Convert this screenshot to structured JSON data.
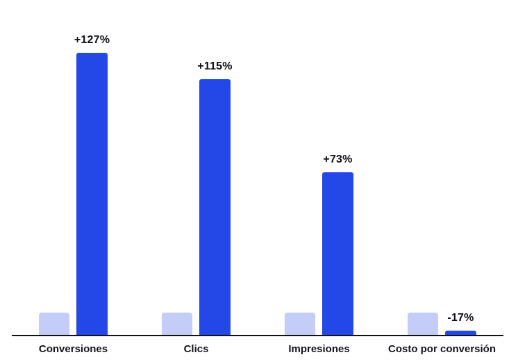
{
  "chart_data": {
    "type": "bar",
    "title": "",
    "categories": [
      "Conversiones",
      "Clics",
      "Impresiones",
      "Costo por conversión"
    ],
    "values": [
      127,
      115,
      73,
      -17
    ],
    "value_labels": [
      "+127%",
      "+115%",
      "+73%",
      "-17%"
    ],
    "reference_bars": "each category shows a small unlabeled light-blue baseline bar to the left of the value bar",
    "legend": "none",
    "grid": false,
    "axes": {
      "y_axis": "none",
      "x_axis": "baseline line only, no tick marks"
    },
    "colors": {
      "bar": "#2447e8",
      "reference_bar": "#c3cdf7",
      "axis_line": "#121212",
      "label_text": "#0e0e15",
      "background": "#ffffff"
    }
  }
}
